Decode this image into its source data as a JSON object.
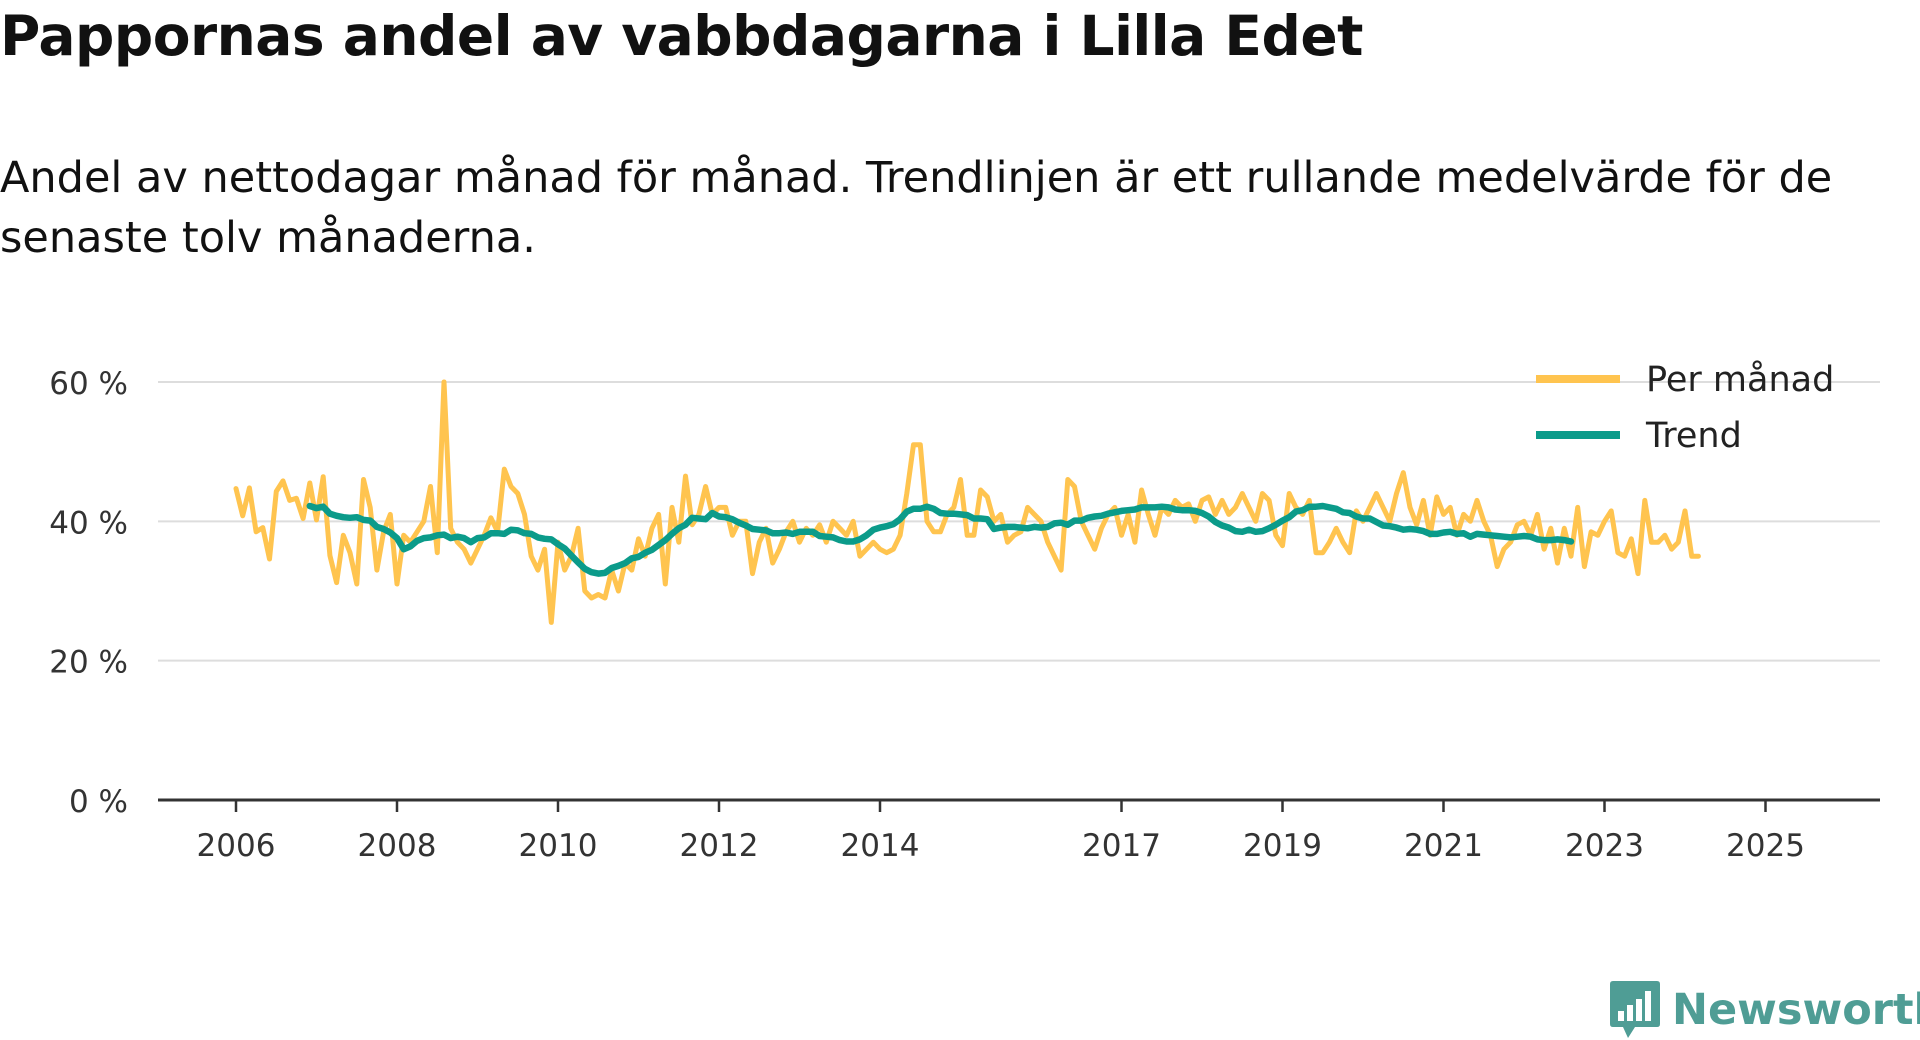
{
  "title": "Pappornas andel av vabbdagarna i Lilla Edet",
  "subtitle": "Andel av nettodagar månad för månad. Trendlinjen är ett rullande medelvärde för de senaste tolv månaderna.",
  "brand": {
    "name": "Newsworthy",
    "icon": "bar-chart-icon",
    "color": "#4f9d95"
  },
  "chart_data": {
    "type": "line",
    "title": "Pappornas andel av vabbdagarna i Lilla Edet",
    "xlabel": "",
    "ylabel": "",
    "x_range": [
      2006.0,
      2025.5
    ],
    "ylim": [
      0,
      60
    ],
    "y_ticks": [
      {
        "value": 0,
        "label": "0 %"
      },
      {
        "value": 20,
        "label": "20 %"
      },
      {
        "value": 40,
        "label": "40 %"
      },
      {
        "value": 60,
        "label": "60 %"
      }
    ],
    "x_ticks": [
      {
        "value": 2006,
        "label": "2006"
      },
      {
        "value": 2008,
        "label": "2008"
      },
      {
        "value": 2010,
        "label": "2010"
      },
      {
        "value": 2012,
        "label": "2012"
      },
      {
        "value": 2014,
        "label": "2014"
      },
      {
        "value": 2017,
        "label": "2017"
      },
      {
        "value": 2019,
        "label": "2019"
      },
      {
        "value": 2021,
        "label": "2021"
      },
      {
        "value": 2023,
        "label": "2023"
      },
      {
        "value": 2025,
        "label": "2025"
      }
    ],
    "grid": true,
    "legend_position": "top-right",
    "series": [
      {
        "name": "Per månad",
        "color": "#ffc44f",
        "start": 2006.0,
        "step_months": 1,
        "values": [
          44.7,
          40.8,
          44.8,
          38.5,
          39.1,
          34.6,
          44.3,
          45.8,
          43.0,
          43.3,
          40.4,
          45.5,
          40.2,
          46.4,
          35.1,
          31.2,
          38.0,
          35.5,
          31.0,
          46.0,
          42.0,
          33.0,
          38.5,
          41.0,
          31.0,
          38.0,
          37.0,
          38.5,
          40.0,
          45.0,
          35.5,
          60.0,
          39.0,
          37.0,
          36.0,
          34.0,
          36.0,
          38.0,
          40.5,
          38.5,
          47.5,
          45.0,
          44.0,
          41.0,
          35.0,
          33.0,
          36.0,
          25.5,
          37.0,
          33.0,
          35.0,
          39.0,
          30.0,
          29.0,
          29.5,
          29.0,
          33.0,
          30.0,
          34.0,
          33.0,
          37.5,
          35.0,
          39.0,
          41.0,
          31.0,
          42.0,
          37.0,
          46.5,
          39.5,
          41.0,
          45.0,
          41.0,
          42.0,
          42.0,
          38.0,
          40.0,
          40.0,
          32.5,
          37.0,
          39.0,
          34.0,
          36.0,
          38.5,
          40.0,
          37.0,
          39.0,
          38.0,
          39.5,
          37.0,
          40.0,
          39.0,
          38.0,
          40.0,
          35.0,
          36.0,
          37.0,
          36.0,
          35.5,
          36.0,
          38.0,
          44.0,
          51.0,
          51.0,
          40.0,
          38.5,
          38.5,
          41.0,
          42.0,
          46.0,
          38.0,
          38.0,
          44.5,
          43.5,
          40.0,
          41.0,
          37.0,
          38.0,
          38.5,
          42.0,
          41.0,
          40.0,
          37.0,
          35.0,
          33.0,
          46.0,
          45.0,
          40.0,
          38.0,
          36.0,
          39.0,
          41.0,
          42.0,
          38.0,
          41.0,
          37.0,
          44.5,
          41.0,
          38.0,
          42.0,
          41.0,
          43.0,
          42.0,
          42.5,
          40.0,
          43.0,
          43.5,
          41.0,
          43.0,
          41.0,
          42.0,
          44.0,
          42.0,
          40.0,
          44.0,
          43.0,
          38.0,
          36.5,
          44.0,
          42.0,
          41.0,
          43.0,
          35.5,
          35.5,
          37.0,
          39.0,
          37.0,
          35.5,
          41.5,
          40.0,
          42.0,
          44.0,
          42.0,
          40.0,
          44.0,
          47.0,
          42.0,
          39.5,
          43.0,
          38.0,
          43.5,
          41.0,
          42.0,
          38.0,
          41.0,
          40.0,
          43.0,
          40.0,
          38.0,
          33.5,
          36.0,
          37.0,
          39.5,
          40.0,
          38.0,
          41.0,
          36.0,
          39.0,
          34.0,
          39.0,
          35.0,
          42.0,
          33.5,
          38.5,
          38.0,
          40.0,
          41.5,
          35.5,
          35.0,
          37.5,
          32.5,
          43.0,
          37.0,
          37.0,
          38.0,
          36.0,
          37.0,
          41.5,
          35.0,
          35.0
        ]
      },
      {
        "name": "Trend",
        "color": "#0b9b8a",
        "start": 2006.9167,
        "step_months": 1,
        "values": [
          42.2,
          41.9,
          42.1,
          41.1,
          40.8,
          40.6,
          40.5,
          40.6,
          40.2,
          40.1,
          39.2,
          38.9,
          38.4,
          37.6,
          36.0,
          36.4,
          37.2,
          37.6,
          37.7,
          38.0,
          38.1,
          37.6,
          37.8,
          37.6,
          37.0,
          37.6,
          37.7,
          38.3,
          38.3,
          38.2,
          38.8,
          38.7,
          38.3,
          38.2,
          37.7,
          37.5,
          37.4,
          36.7,
          36.1,
          35.1,
          34.1,
          33.2,
          32.7,
          32.5,
          32.6,
          33.3,
          33.6,
          34.0,
          34.7,
          34.9,
          35.5,
          35.9,
          36.6,
          37.3,
          38.2,
          39.0,
          39.5,
          40.5,
          40.4,
          40.3,
          41.2,
          40.7,
          40.6,
          40.3,
          39.8,
          39.4,
          38.9,
          38.8,
          38.7,
          38.3,
          38.3,
          38.4,
          38.2,
          38.5,
          38.5,
          38.5,
          37.9,
          37.8,
          37.7,
          37.3,
          37.1,
          37.1,
          37.4,
          38.0,
          38.8,
          39.1,
          39.3,
          39.6,
          40.3,
          41.4,
          41.8,
          41.8,
          42.1,
          41.8,
          41.2,
          41.1,
          41.1,
          41.0,
          40.9,
          40.4,
          40.4,
          40.3,
          38.9,
          39.1,
          39.2,
          39.2,
          39.1,
          39.0,
          39.2,
          39.1,
          39.2,
          39.7,
          39.8,
          39.5,
          40.1,
          40.1,
          40.5,
          40.7,
          40.8,
          41.1,
          41.3,
          41.5,
          41.6,
          41.7,
          42.0,
          42.0,
          42.0,
          42.1,
          42.0,
          41.7,
          41.6,
          41.6,
          41.5,
          41.2,
          40.7,
          39.9,
          39.4,
          39.1,
          38.6,
          38.5,
          38.8,
          38.5,
          38.6,
          39.0,
          39.5,
          40.1,
          40.6,
          41.4,
          41.6,
          42.1,
          42.1,
          42.2,
          42.0,
          41.8,
          41.3,
          41.2,
          40.7,
          40.4,
          40.4,
          39.9,
          39.4,
          39.3,
          39.1,
          38.8,
          38.9,
          38.8,
          38.6,
          38.2,
          38.2,
          38.4,
          38.5,
          38.2,
          38.3,
          37.8,
          38.2,
          38.1,
          38.0,
          37.9,
          37.8,
          37.7,
          37.8,
          37.9,
          37.8,
          37.4,
          37.3,
          37.3,
          37.4,
          37.3,
          37.1
        ]
      }
    ]
  }
}
